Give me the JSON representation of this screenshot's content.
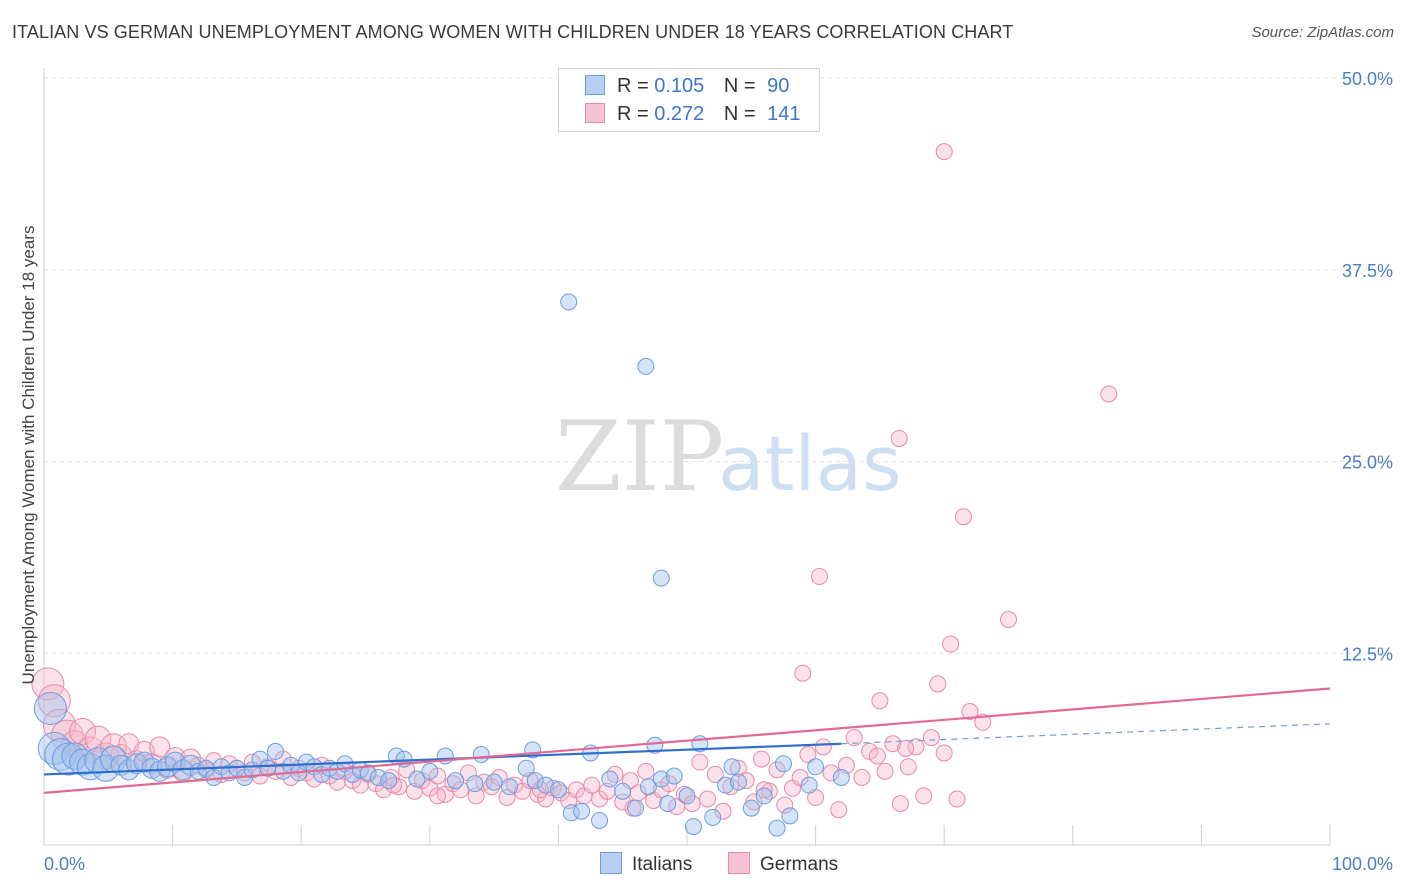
{
  "header": {
    "title": "ITALIAN VS GERMAN UNEMPLOYMENT AMONG WOMEN WITH CHILDREN UNDER 18 YEARS CORRELATION CHART",
    "source": "Source: ZipAtlas.com"
  },
  "watermark": {
    "zip": "ZIP",
    "atlas": "atlas"
  },
  "legend": {
    "italians": {
      "r_label": "R =",
      "r_value": "0.105",
      "n_label": "N =",
      "n_value": "90",
      "color": "#6f9de0",
      "fill": "#b7cff2"
    },
    "germans": {
      "r_label": "R =",
      "r_value": "0.272",
      "n_label": "N =",
      "n_value": "141",
      "color": "#e88aa8",
      "fill": "#f7c3d3"
    }
  },
  "bottom_legend": {
    "italians": "Italians",
    "germans": "Germans"
  },
  "chart_data": {
    "type": "scatter",
    "xlabel": "",
    "ylabel": "Unemployment Among Women with Children Under 18 years",
    "xlim": [
      0,
      100
    ],
    "ylim": [
      0,
      50
    ],
    "x_tick_labels": [
      "0.0%",
      "100.0%"
    ],
    "y_ticks": [
      12.5,
      25.0,
      37.5,
      50.0
    ],
    "y_tick_labels": [
      "12.5%",
      "25.0%",
      "37.5%",
      "50.0%"
    ],
    "grid": true,
    "series": [
      {
        "name": "Italians",
        "color": "#4a7fc4",
        "trend": {
          "x": [
            0,
            62
          ],
          "y": [
            4.6,
            6.6
          ],
          "extended_x": [
            62,
            100
          ],
          "extended_y": [
            6.6,
            7.9
          ]
        },
        "points": [
          {
            "x": 0.5,
            "y": 8.9
          },
          {
            "x": 0.8,
            "y": 6.3
          },
          {
            "x": 1.3,
            "y": 5.9
          },
          {
            "x": 1.9,
            "y": 5.6
          },
          {
            "x": 2.4,
            "y": 5.8
          },
          {
            "x": 3.0,
            "y": 5.4
          },
          {
            "x": 3.6,
            "y": 5.1
          },
          {
            "x": 4.2,
            "y": 5.5
          },
          {
            "x": 4.8,
            "y": 5.0
          },
          {
            "x": 5.4,
            "y": 5.6
          },
          {
            "x": 6.0,
            "y": 5.2
          },
          {
            "x": 6.6,
            "y": 4.9
          },
          {
            "x": 7.2,
            "y": 5.3
          },
          {
            "x": 7.8,
            "y": 5.4
          },
          {
            "x": 8.4,
            "y": 5.0
          },
          {
            "x": 9.0,
            "y": 4.8
          },
          {
            "x": 9.6,
            "y": 5.1
          },
          {
            "x": 10.2,
            "y": 5.4
          },
          {
            "x": 10.8,
            "y": 4.9
          },
          {
            "x": 11.4,
            "y": 5.2
          },
          {
            "x": 12.0,
            "y": 4.8
          },
          {
            "x": 12.6,
            "y": 5.0
          },
          {
            "x": 13.2,
            "y": 4.4
          },
          {
            "x": 13.8,
            "y": 5.1
          },
          {
            "x": 14.4,
            "y": 4.7
          },
          {
            "x": 15.0,
            "y": 5.0
          },
          {
            "x": 15.6,
            "y": 4.4
          },
          {
            "x": 16.2,
            "y": 4.9
          },
          {
            "x": 16.8,
            "y": 5.6
          },
          {
            "x": 17.4,
            "y": 5.0
          },
          {
            "x": 18.0,
            "y": 6.1
          },
          {
            "x": 18.6,
            "y": 4.8
          },
          {
            "x": 19.2,
            "y": 5.2
          },
          {
            "x": 19.8,
            "y": 4.7
          },
          {
            "x": 20.4,
            "y": 5.4
          },
          {
            "x": 21.0,
            "y": 5.1
          },
          {
            "x": 21.6,
            "y": 4.6
          },
          {
            "x": 22.2,
            "y": 5.0
          },
          {
            "x": 22.8,
            "y": 4.8
          },
          {
            "x": 23.4,
            "y": 5.3
          },
          {
            "x": 24.0,
            "y": 4.6
          },
          {
            "x": 24.6,
            "y": 4.9
          },
          {
            "x": 25.2,
            "y": 4.7
          },
          {
            "x": 26.0,
            "y": 4.4
          },
          {
            "x": 26.8,
            "y": 4.2
          },
          {
            "x": 27.4,
            "y": 5.8
          },
          {
            "x": 28.0,
            "y": 5.6
          },
          {
            "x": 29.0,
            "y": 4.3
          },
          {
            "x": 30.0,
            "y": 4.8
          },
          {
            "x": 31.2,
            "y": 5.8
          },
          {
            "x": 32.0,
            "y": 4.2
          },
          {
            "x": 33.5,
            "y": 4.0
          },
          {
            "x": 34.0,
            "y": 5.9
          },
          {
            "x": 35.0,
            "y": 4.1
          },
          {
            "x": 36.2,
            "y": 3.8
          },
          {
            "x": 37.5,
            "y": 5.0
          },
          {
            "x": 38.2,
            "y": 4.2
          },
          {
            "x": 39.0,
            "y": 3.9
          },
          {
            "x": 40.0,
            "y": 3.6
          },
          {
            "x": 41.0,
            "y": 2.1
          },
          {
            "x": 41.8,
            "y": 2.2
          },
          {
            "x": 42.5,
            "y": 6.0
          },
          {
            "x": 43.2,
            "y": 1.6
          },
          {
            "x": 44.0,
            "y": 4.3
          },
          {
            "x": 45.0,
            "y": 3.5
          },
          {
            "x": 46.0,
            "y": 2.4
          },
          {
            "x": 47.0,
            "y": 3.8
          },
          {
            "x": 48.0,
            "y": 4.3
          },
          {
            "x": 48.5,
            "y": 2.7
          },
          {
            "x": 49.0,
            "y": 4.5
          },
          {
            "x": 50.0,
            "y": 3.2
          },
          {
            "x": 50.5,
            "y": 1.2
          },
          {
            "x": 51.0,
            "y": 6.6
          },
          {
            "x": 52.0,
            "y": 1.8
          },
          {
            "x": 53.0,
            "y": 3.9
          },
          {
            "x": 53.5,
            "y": 5.1
          },
          {
            "x": 54.0,
            "y": 4.1
          },
          {
            "x": 55.0,
            "y": 2.4
          },
          {
            "x": 56.0,
            "y": 3.2
          },
          {
            "x": 57.0,
            "y": 1.1
          },
          {
            "x": 58.0,
            "y": 1.9
          },
          {
            "x": 59.5,
            "y": 3.9
          },
          {
            "x": 38.0,
            "y": 6.2
          },
          {
            "x": 47.5,
            "y": 6.5
          },
          {
            "x": 40.8,
            "y": 35.4
          },
          {
            "x": 46.8,
            "y": 31.2
          },
          {
            "x": 48.0,
            "y": 17.4
          },
          {
            "x": 62.0,
            "y": 4.4
          },
          {
            "x": 60.0,
            "y": 5.1
          },
          {
            "x": 57.5,
            "y": 5.3
          }
        ]
      },
      {
        "name": "Germans",
        "color": "#e26a92",
        "trend": {
          "x": [
            0,
            100
          ],
          "y": [
            3.4,
            10.2
          ]
        },
        "points": [
          {
            "x": 0.3,
            "y": 10.5
          },
          {
            "x": 0.8,
            "y": 9.4
          },
          {
            "x": 1.2,
            "y": 7.8
          },
          {
            "x": 1.8,
            "y": 7.1
          },
          {
            "x": 2.4,
            "y": 6.6
          },
          {
            "x": 3.0,
            "y": 7.4
          },
          {
            "x": 3.6,
            "y": 6.2
          },
          {
            "x": 4.2,
            "y": 6.9
          },
          {
            "x": 4.8,
            "y": 5.8
          },
          {
            "x": 5.4,
            "y": 6.4
          },
          {
            "x": 6.0,
            "y": 5.9
          },
          {
            "x": 6.6,
            "y": 6.6
          },
          {
            "x": 7.2,
            "y": 5.5
          },
          {
            "x": 7.8,
            "y": 6.1
          },
          {
            "x": 8.4,
            "y": 5.3
          },
          {
            "x": 9.0,
            "y": 6.4
          },
          {
            "x": 9.6,
            "y": 5.0
          },
          {
            "x": 10.2,
            "y": 5.7
          },
          {
            "x": 10.8,
            "y": 4.8
          },
          {
            "x": 11.4,
            "y": 5.6
          },
          {
            "x": 12.0,
            "y": 5.2
          },
          {
            "x": 12.6,
            "y": 4.9
          },
          {
            "x": 13.2,
            "y": 5.5
          },
          {
            "x": 13.8,
            "y": 4.6
          },
          {
            "x": 14.4,
            "y": 5.3
          },
          {
            "x": 15.0,
            "y": 5.0
          },
          {
            "x": 15.6,
            "y": 4.7
          },
          {
            "x": 16.2,
            "y": 5.4
          },
          {
            "x": 16.8,
            "y": 4.5
          },
          {
            "x": 17.4,
            "y": 5.1
          },
          {
            "x": 18.0,
            "y": 4.8
          },
          {
            "x": 18.6,
            "y": 5.6
          },
          {
            "x": 19.2,
            "y": 4.4
          },
          {
            "x": 19.8,
            "y": 5.0
          },
          {
            "x": 20.4,
            "y": 4.7
          },
          {
            "x": 21.0,
            "y": 4.3
          },
          {
            "x": 21.6,
            "y": 5.2
          },
          {
            "x": 22.2,
            "y": 4.5
          },
          {
            "x": 22.8,
            "y": 4.1
          },
          {
            "x": 23.4,
            "y": 4.8
          },
          {
            "x": 24.0,
            "y": 4.2
          },
          {
            "x": 24.6,
            "y": 3.9
          },
          {
            "x": 25.2,
            "y": 4.6
          },
          {
            "x": 25.8,
            "y": 4.0
          },
          {
            "x": 26.4,
            "y": 3.6
          },
          {
            "x": 27.0,
            "y": 4.4
          },
          {
            "x": 27.6,
            "y": 3.8
          },
          {
            "x": 28.2,
            "y": 4.9
          },
          {
            "x": 28.8,
            "y": 3.5
          },
          {
            "x": 29.4,
            "y": 4.2
          },
          {
            "x": 30.0,
            "y": 3.7
          },
          {
            "x": 30.6,
            "y": 4.5
          },
          {
            "x": 31.2,
            "y": 3.3
          },
          {
            "x": 31.8,
            "y": 4.0
          },
          {
            "x": 32.4,
            "y": 3.6
          },
          {
            "x": 33.0,
            "y": 4.7
          },
          {
            "x": 33.6,
            "y": 3.2
          },
          {
            "x": 34.2,
            "y": 4.1
          },
          {
            "x": 34.8,
            "y": 3.8
          },
          {
            "x": 35.4,
            "y": 4.4
          },
          {
            "x": 36.0,
            "y": 3.1
          },
          {
            "x": 36.6,
            "y": 3.9
          },
          {
            "x": 37.2,
            "y": 3.5
          },
          {
            "x": 37.8,
            "y": 4.2
          },
          {
            "x": 38.4,
            "y": 3.3
          },
          {
            "x": 39.0,
            "y": 3.0
          },
          {
            "x": 39.6,
            "y": 3.7
          },
          {
            "x": 40.2,
            "y": 3.4
          },
          {
            "x": 40.8,
            "y": 2.9
          },
          {
            "x": 41.4,
            "y": 3.6
          },
          {
            "x": 42.0,
            "y": 3.2
          },
          {
            "x": 42.6,
            "y": 3.9
          },
          {
            "x": 43.2,
            "y": 3.0
          },
          {
            "x": 43.8,
            "y": 3.5
          },
          {
            "x": 44.4,
            "y": 4.6
          },
          {
            "x": 45.0,
            "y": 2.8
          },
          {
            "x": 45.6,
            "y": 4.2
          },
          {
            "x": 46.2,
            "y": 3.4
          },
          {
            "x": 46.8,
            "y": 4.8
          },
          {
            "x": 47.4,
            "y": 2.9
          },
          {
            "x": 48.0,
            "y": 3.6
          },
          {
            "x": 48.6,
            "y": 4.0
          },
          {
            "x": 49.2,
            "y": 2.5
          },
          {
            "x": 49.8,
            "y": 3.3
          },
          {
            "x": 50.4,
            "y": 2.7
          },
          {
            "x": 51.0,
            "y": 5.4
          },
          {
            "x": 51.6,
            "y": 3.0
          },
          {
            "x": 52.2,
            "y": 4.6
          },
          {
            "x": 52.8,
            "y": 2.2
          },
          {
            "x": 53.4,
            "y": 3.8
          },
          {
            "x": 54.0,
            "y": 5.0
          },
          {
            "x": 54.6,
            "y": 4.2
          },
          {
            "x": 55.2,
            "y": 2.8
          },
          {
            "x": 55.8,
            "y": 5.6
          },
          {
            "x": 56.4,
            "y": 3.5
          },
          {
            "x": 57.0,
            "y": 4.9
          },
          {
            "x": 57.6,
            "y": 2.6
          },
          {
            "x": 58.2,
            "y": 3.7
          },
          {
            "x": 58.8,
            "y": 4.4
          },
          {
            "x": 59.4,
            "y": 5.9
          },
          {
            "x": 60.0,
            "y": 3.1
          },
          {
            "x": 60.6,
            "y": 6.4
          },
          {
            "x": 61.2,
            "y": 4.7
          },
          {
            "x": 61.8,
            "y": 2.3
          },
          {
            "x": 62.4,
            "y": 5.2
          },
          {
            "x": 63.0,
            "y": 7.0
          },
          {
            "x": 63.6,
            "y": 4.4
          },
          {
            "x": 64.2,
            "y": 6.1
          },
          {
            "x": 64.8,
            "y": 5.8
          },
          {
            "x": 65.4,
            "y": 4.8
          },
          {
            "x": 66.0,
            "y": 6.6
          },
          {
            "x": 66.6,
            "y": 2.7
          },
          {
            "x": 67.2,
            "y": 5.1
          },
          {
            "x": 67.8,
            "y": 6.4
          },
          {
            "x": 68.4,
            "y": 3.2
          },
          {
            "x": 69.0,
            "y": 7.0
          },
          {
            "x": 70.0,
            "y": 6.0
          },
          {
            "x": 71.0,
            "y": 3.0
          },
          {
            "x": 72.0,
            "y": 8.7
          },
          {
            "x": 73.0,
            "y": 8.0
          },
          {
            "x": 59.0,
            "y": 11.2
          },
          {
            "x": 65.0,
            "y": 9.4
          },
          {
            "x": 67.0,
            "y": 6.3
          },
          {
            "x": 69.5,
            "y": 10.5
          },
          {
            "x": 70.5,
            "y": 13.1
          },
          {
            "x": 75.0,
            "y": 14.7
          },
          {
            "x": 71.5,
            "y": 21.4
          },
          {
            "x": 70.0,
            "y": 45.2
          },
          {
            "x": 82.8,
            "y": 29.4
          },
          {
            "x": 66.5,
            "y": 26.5
          },
          {
            "x": 60.3,
            "y": 17.5
          },
          {
            "x": 56.0,
            "y": 3.6
          },
          {
            "x": 45.8,
            "y": 2.4
          },
          {
            "x": 38.6,
            "y": 3.6
          },
          {
            "x": 30.6,
            "y": 3.2
          },
          {
            "x": 27.2,
            "y": 3.9
          }
        ]
      }
    ]
  }
}
